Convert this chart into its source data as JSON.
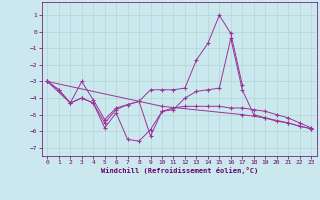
{
  "xlabel": "Windchill (Refroidissement éolien,°C)",
  "background_color": "#cce8ef",
  "grid_color": "#aad4cc",
  "line_color": "#993399",
  "xlim": [
    -0.5,
    23.5
  ],
  "ylim": [
    -7.5,
    1.8
  ],
  "yticks": [
    -7,
    -6,
    -5,
    -4,
    -3,
    -2,
    -1,
    0,
    1
  ],
  "xticks": [
    0,
    1,
    2,
    3,
    4,
    5,
    6,
    7,
    8,
    9,
    10,
    11,
    12,
    13,
    14,
    15,
    16,
    17,
    18,
    19,
    20,
    21,
    22,
    23
  ],
  "line1_x": [
    0,
    1,
    2,
    3,
    4,
    5,
    6,
    7,
    8,
    9,
    10,
    11,
    12,
    13,
    14,
    15,
    16,
    17
  ],
  "line1_y": [
    -3.0,
    -3.5,
    -4.3,
    -3.0,
    -4.1,
    -5.3,
    -4.6,
    -4.4,
    -4.2,
    -3.5,
    -3.5,
    -3.5,
    -3.4,
    -1.7,
    -0.7,
    1.0,
    -0.1,
    -3.2
  ],
  "line2_x": [
    0,
    2,
    3,
    4,
    5,
    6,
    7,
    8,
    9,
    10,
    11,
    12,
    13,
    14,
    15,
    16,
    17,
    18,
    19,
    20,
    21,
    22,
    23
  ],
  "line2_y": [
    -3.0,
    -4.3,
    -4.0,
    -4.3,
    -5.5,
    -4.7,
    -4.4,
    -4.2,
    -6.3,
    -4.8,
    -4.7,
    -4.0,
    -3.6,
    -3.5,
    -3.4,
    -0.4,
    -3.5,
    -5.0,
    -5.2,
    -5.4,
    -5.5,
    -5.7,
    -5.85
  ],
  "line3_x": [
    0,
    1,
    2,
    3,
    4,
    5,
    6,
    7,
    8,
    9,
    10,
    11,
    12,
    13,
    14,
    15,
    16,
    17,
    18,
    19,
    20,
    21,
    22,
    23
  ],
  "line3_y": [
    -3.0,
    -3.5,
    -4.3,
    -4.0,
    -4.3,
    -5.8,
    -4.9,
    -6.5,
    -6.6,
    -5.9,
    -4.8,
    -4.6,
    -4.5,
    -4.5,
    -4.5,
    -4.5,
    -4.6,
    -4.6,
    -4.7,
    -4.8,
    -5.0,
    -5.2,
    -5.5,
    -5.8
  ],
  "line4_x": [
    0,
    10,
    17,
    19,
    21,
    22,
    23
  ],
  "line4_y": [
    -3.0,
    -4.5,
    -5.0,
    -5.2,
    -5.5,
    -5.7,
    -5.85
  ]
}
